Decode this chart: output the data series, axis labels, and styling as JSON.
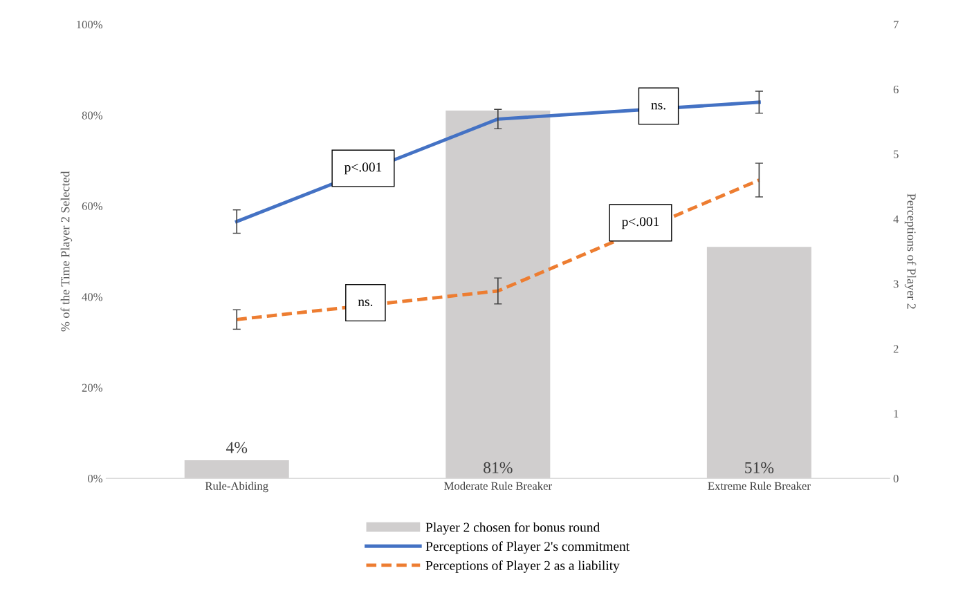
{
  "chart_data": {
    "type": "bar",
    "ylabel": "% of the Time Player 2 Selected",
    "y2label": "Perceptions of Player 2",
    "categories": [
      "Rule-Abiding",
      "Moderate Rule Breaker",
      "Extreme Rule Breaker"
    ],
    "series": [
      {
        "name": "Player 2 chosen for bonus round",
        "color": "#d0cece",
        "values": [
          4,
          81,
          51
        ],
        "value_labels": [
          "4%",
          "81%",
          "51%"
        ]
      },
      {
        "name": "Perceptions of Player 2's commitment",
        "type": "line",
        "axis": "y2",
        "color": "#4472c4",
        "line_style": "solid",
        "values": [
          3.96,
          5.54,
          5.8
        ],
        "errors": [
          0.18,
          0.15,
          0.17
        ]
      },
      {
        "name": "Perceptions of Player 2 as a liability",
        "type": "line",
        "axis": "y2",
        "color": "#ed7d31",
        "line_style": "dashed",
        "values": [
          2.45,
          2.89,
          4.6
        ],
        "errors": [
          0.15,
          0.2,
          0.26
        ]
      }
    ],
    "ylim": [
      0,
      100
    ],
    "yticks": [
      {
        "value": 0,
        "label": "0%"
      },
      {
        "value": 20,
        "label": "20%"
      },
      {
        "value": 40,
        "label": "40%"
      },
      {
        "value": 60,
        "label": "60%"
      },
      {
        "value": 80,
        "label": "80%"
      },
      {
        "value": 100,
        "label": "100%"
      }
    ],
    "y2lim": [
      0,
      7
    ],
    "y2ticks": [
      0,
      1,
      2,
      3,
      4,
      5,
      6,
      7
    ],
    "annotations": [
      "p<.001",
      "ns.",
      "p<.001",
      "ns."
    ],
    "legend": "bottom",
    "grid": false
  }
}
